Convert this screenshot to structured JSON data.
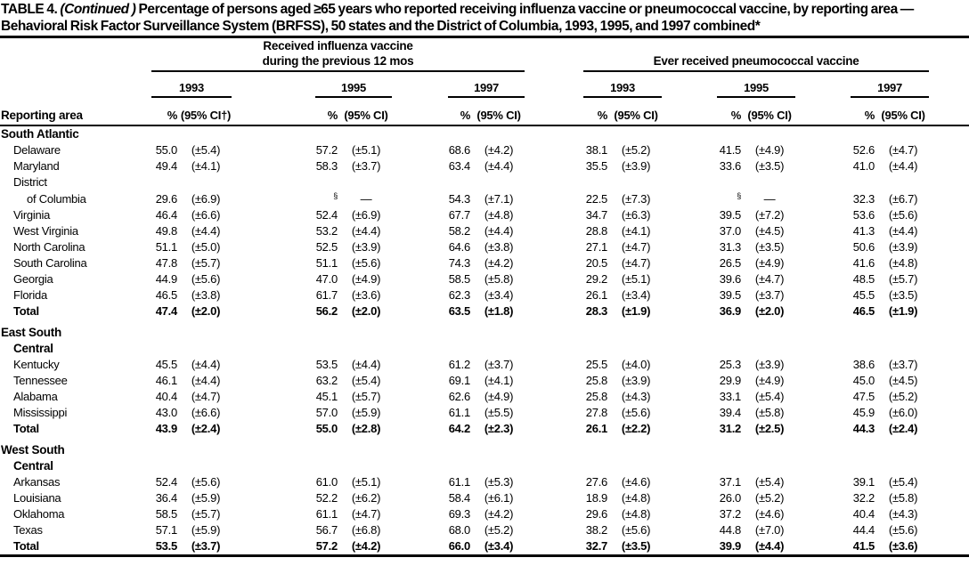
{
  "title": {
    "prefix": "TABLE 4. ",
    "continued": "(Continued )",
    "rest": " Percentage of persons aged ≥65 years who reported receiving influenza vaccine or pneumococcal vaccine, by reporting area — Behavioral Risk Factor Surveillance System (BRFSS), 50 states and the District of Columbia, 1993, 1995, and 1997 combined*"
  },
  "columns": {
    "reporting_area": "Reporting area",
    "influenza_group": {
      "line1": "Received influenza vaccine",
      "line2": "during the previous 12 mos"
    },
    "pneumococcal_group": "Ever received pneumococcal vaccine",
    "years": [
      "1993",
      "1995",
      "1997"
    ],
    "pct_label": "%",
    "ci_label_first": "(95% CI†)",
    "ci_label": "(95% CI)"
  },
  "sections": [
    {
      "title_lines": [
        "South Atlantic"
      ],
      "rows": [
        {
          "label_lines": [
            "Delaware"
          ],
          "bold": false,
          "values": [
            "55.0",
            "(±5.4)",
            "57.2",
            "(±5.1)",
            "68.6",
            "(±4.2)",
            "38.1",
            "(±5.2)",
            "41.5",
            "(±4.9)",
            "52.6",
            "(±4.7)"
          ]
        },
        {
          "label_lines": [
            "Maryland"
          ],
          "bold": false,
          "values": [
            "49.4",
            "(±4.1)",
            "58.3",
            "(±3.7)",
            "63.4",
            "(±4.4)",
            "35.5",
            "(±3.9)",
            "33.6",
            "(±3.5)",
            "41.0",
            "(±4.4)"
          ]
        },
        {
          "label_lines": [
            "District",
            "of Columbia"
          ],
          "bold": false,
          "values": [
            "29.6",
            "(±6.9)",
            "§",
            "—",
            "54.3",
            "(±7.1)",
            "22.5",
            "(±7.3)",
            "§",
            "—",
            "32.3",
            "(±6.7)"
          ]
        },
        {
          "label_lines": [
            "Virginia"
          ],
          "bold": false,
          "values": [
            "46.4",
            "(±6.6)",
            "52.4",
            "(±6.9)",
            "67.7",
            "(±4.8)",
            "34.7",
            "(±6.3)",
            "39.5",
            "(±7.2)",
            "53.6",
            "(±5.6)"
          ]
        },
        {
          "label_lines": [
            "West Virginia"
          ],
          "bold": false,
          "values": [
            "49.8",
            "(±4.4)",
            "53.2",
            "(±4.4)",
            "58.2",
            "(±4.4)",
            "28.8",
            "(±4.1)",
            "37.0",
            "(±4.5)",
            "41.3",
            "(±4.4)"
          ]
        },
        {
          "label_lines": [
            "North Carolina"
          ],
          "bold": false,
          "values": [
            "51.1",
            "(±5.0)",
            "52.5",
            "(±3.9)",
            "64.6",
            "(±3.8)",
            "27.1",
            "(±4.7)",
            "31.3",
            "(±3.5)",
            "50.6",
            "(±3.9)"
          ]
        },
        {
          "label_lines": [
            "South Carolina"
          ],
          "bold": false,
          "values": [
            "47.8",
            "(±5.7)",
            "51.1",
            "(±5.6)",
            "74.3",
            "(±4.2)",
            "20.5",
            "(±4.7)",
            "26.5",
            "(±4.9)",
            "41.6",
            "(±4.8)"
          ]
        },
        {
          "label_lines": [
            "Georgia"
          ],
          "bold": false,
          "values": [
            "44.9",
            "(±5.6)",
            "47.0",
            "(±4.9)",
            "58.5",
            "(±5.8)",
            "29.2",
            "(±5.1)",
            "39.6",
            "(±4.7)",
            "48.5",
            "(±5.7)"
          ]
        },
        {
          "label_lines": [
            "Florida"
          ],
          "bold": false,
          "values": [
            "46.5",
            "(±3.8)",
            "61.7",
            "(±3.6)",
            "62.3",
            "(±3.4)",
            "26.1",
            "(±3.4)",
            "39.5",
            "(±3.7)",
            "45.5",
            "(±3.5)"
          ]
        },
        {
          "label_lines": [
            "Total"
          ],
          "bold": true,
          "values": [
            "47.4",
            "(±2.0)",
            "56.2",
            "(±2.0)",
            "63.5",
            "(±1.8)",
            "28.3",
            "(±1.9)",
            "36.9",
            "(±2.0)",
            "46.5",
            "(±1.9)"
          ]
        }
      ]
    },
    {
      "title_lines": [
        "East South",
        "Central"
      ],
      "rows": [
        {
          "label_lines": [
            "Kentucky"
          ],
          "bold": false,
          "values": [
            "45.5",
            "(±4.4)",
            "53.5",
            "(±4.4)",
            "61.2",
            "(±3.7)",
            "25.5",
            "(±4.0)",
            "25.3",
            "(±3.9)",
            "38.6",
            "(±3.7)"
          ]
        },
        {
          "label_lines": [
            "Tennessee"
          ],
          "bold": false,
          "values": [
            "46.1",
            "(±4.4)",
            "63.2",
            "(±5.4)",
            "69.1",
            "(±4.1)",
            "25.8",
            "(±3.9)",
            "29.9",
            "(±4.9)",
            "45.0",
            "(±4.5)"
          ]
        },
        {
          "label_lines": [
            "Alabama"
          ],
          "bold": false,
          "values": [
            "40.4",
            "(±4.7)",
            "45.1",
            "(±5.7)",
            "62.6",
            "(±4.9)",
            "25.8",
            "(±4.3)",
            "33.1",
            "(±5.4)",
            "47.5",
            "(±5.2)"
          ]
        },
        {
          "label_lines": [
            "Mississippi"
          ],
          "bold": false,
          "values": [
            "43.0",
            "(±6.6)",
            "57.0",
            "(±5.9)",
            "61.1",
            "(±5.5)",
            "27.8",
            "(±5.6)",
            "39.4",
            "(±5.8)",
            "45.9",
            "(±6.0)"
          ]
        },
        {
          "label_lines": [
            "Total"
          ],
          "bold": true,
          "values": [
            "43.9",
            "(±2.4)",
            "55.0",
            "(±2.8)",
            "64.2",
            "(±2.3)",
            "26.1",
            "(±2.2)",
            "31.2",
            "(±2.5)",
            "44.3",
            "(±2.4)"
          ]
        }
      ]
    },
    {
      "title_lines": [
        "West South",
        "Central"
      ],
      "rows": [
        {
          "label_lines": [
            "Arkansas"
          ],
          "bold": false,
          "values": [
            "52.4",
            "(±5.6)",
            "61.0",
            "(±5.1)",
            "61.1",
            "(±5.3)",
            "27.6",
            "(±4.6)",
            "37.1",
            "(±5.4)",
            "39.1",
            "(±5.4)"
          ]
        },
        {
          "label_lines": [
            "Louisiana"
          ],
          "bold": false,
          "values": [
            "36.4",
            "(±5.9)",
            "52.2",
            "(±6.2)",
            "58.4",
            "(±6.1)",
            "18.9",
            "(±4.8)",
            "26.0",
            "(±5.2)",
            "32.2",
            "(±5.8)"
          ]
        },
        {
          "label_lines": [
            "Oklahoma"
          ],
          "bold": false,
          "values": [
            "58.5",
            "(±5.7)",
            "61.1",
            "(±4.7)",
            "69.3",
            "(±4.2)",
            "29.6",
            "(±4.8)",
            "37.2",
            "(±4.6)",
            "40.4",
            "(±4.3)"
          ]
        },
        {
          "label_lines": [
            "Texas"
          ],
          "bold": false,
          "values": [
            "57.1",
            "(±5.9)",
            "56.7",
            "(±6.8)",
            "68.0",
            "(±5.2)",
            "38.2",
            "(±5.6)",
            "44.8",
            "(±7.0)",
            "44.4",
            "(±5.6)"
          ]
        },
        {
          "label_lines": [
            "Total"
          ],
          "bold": true,
          "values": [
            "53.5",
            "(±3.7)",
            "57.2",
            "(±4.2)",
            "66.0",
            "(±3.4)",
            "32.7",
            "(±3.5)",
            "39.9",
            "(±4.4)",
            "41.5",
            "(±3.6)"
          ]
        }
      ]
    }
  ]
}
